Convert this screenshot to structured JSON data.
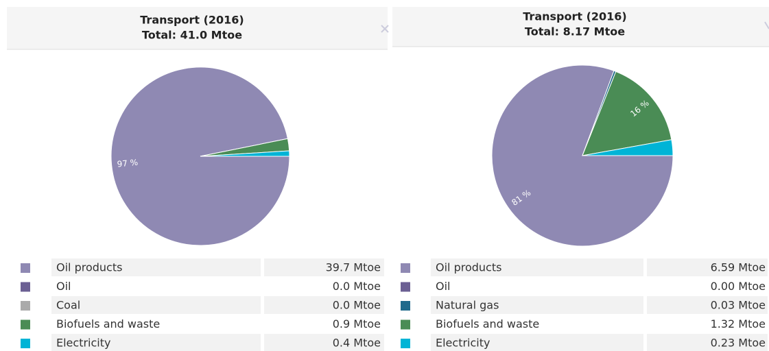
{
  "chart_data": [
    {
      "type": "pie",
      "title": "Transport (2016)",
      "subtitle": "Total: 41.0 Mtoe",
      "categories": [
        "Oil products",
        "Oil",
        "Coal",
        "Biofuels and waste",
        "Electricity"
      ],
      "values": [
        39.7,
        0.0,
        0.0,
        0.9,
        0.4
      ],
      "value_labels": [
        "39.7 Mtoe",
        "0.0 Mtoe",
        "0.0 Mtoe",
        "0.9 Mtoe",
        "0.4 Mtoe"
      ],
      "pie_labels": [
        "97 %",
        null,
        null,
        null,
        null
      ],
      "colors": [
        "#8f89b3",
        "#6b5f93",
        "#aaaaaa",
        "#4a8c55",
        "#00b4d6"
      ]
    },
    {
      "type": "pie",
      "title": "Transport (2016)",
      "subtitle": "Total: 8.17 Mtoe",
      "categories": [
        "Oil products",
        "Oil",
        "Natural gas",
        "Biofuels and waste",
        "Electricity"
      ],
      "values": [
        6.59,
        0.0,
        0.03,
        1.32,
        0.23
      ],
      "value_labels": [
        "6.59 Mtoe",
        "0.00 Mtoe",
        "0.03 Mtoe",
        "1.32 Mtoe",
        "0.23 Mtoe"
      ],
      "pie_labels": [
        "81 %",
        null,
        null,
        "16 %",
        null
      ],
      "colors": [
        "#8f89b3",
        "#6b5f93",
        "#206a8c",
        "#4a8c55",
        "#00b4d6"
      ]
    }
  ]
}
